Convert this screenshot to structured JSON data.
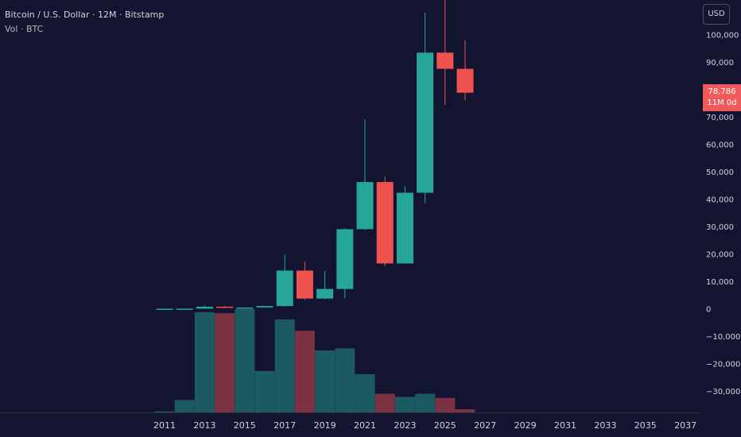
{
  "legend": {
    "title": "Bitcoin / U.S. Dollar · 12M · Bitstamp",
    "volume_label": "Vol · BTC"
  },
  "currency_button": "USD",
  "price_badge": {
    "price": "78,786",
    "countdown": "11M 0d"
  },
  "colors": {
    "background": "#131430",
    "up": "#26a69a",
    "down": "#ef5350",
    "vol_up": "#1c5a62",
    "vol_down": "#7d3244",
    "axis_text": "#d1d4dc"
  },
  "chart_data": {
    "type": "candlestick",
    "y_ticks": [
      "100,000",
      "90,000",
      "80,000",
      "70,000",
      "60,000",
      "50,000",
      "40,000",
      "30,000",
      "20,000",
      "10,000",
      "0",
      "−10,000",
      "−20,000",
      "−30,000"
    ],
    "y_tick_values": [
      100000,
      90000,
      80000,
      70000,
      60000,
      50000,
      40000,
      30000,
      20000,
      10000,
      0,
      -10000,
      -20000,
      -30000
    ],
    "x_ticks": [
      "2011",
      "2013",
      "2015",
      "2017",
      "2019",
      "2021",
      "2023",
      "2025",
      "2027",
      "2029",
      "2031",
      "2033",
      "2035",
      "2037"
    ],
    "x_tick_values": [
      2011,
      2013,
      2015,
      2017,
      2019,
      2021,
      2023,
      2025,
      2027,
      2029,
      2031,
      2033,
      2035,
      2037
    ],
    "ylim": [
      -37000,
      110000
    ],
    "candles": [
      {
        "year": 2011,
        "open": 0.3,
        "high": 32,
        "low": 0.3,
        "close": 5
      },
      {
        "year": 2012,
        "open": 5,
        "high": 16,
        "low": 4,
        "close": 13
      },
      {
        "year": 2013,
        "open": 13,
        "high": 1163,
        "low": 13,
        "close": 730
      },
      {
        "year": 2014,
        "open": 730,
        "high": 1000,
        "low": 200,
        "close": 320
      },
      {
        "year": 2015,
        "open": 320,
        "high": 500,
        "low": 150,
        "close": 430
      },
      {
        "year": 2016,
        "open": 430,
        "high": 980,
        "low": 350,
        "close": 960
      },
      {
        "year": 2017,
        "open": 960,
        "high": 19700,
        "low": 750,
        "close": 13900
      },
      {
        "year": 2018,
        "open": 13900,
        "high": 17200,
        "low": 3200,
        "close": 3700
      },
      {
        "year": 2019,
        "open": 3700,
        "high": 13800,
        "low": 3400,
        "close": 7200
      },
      {
        "year": 2020,
        "open": 7200,
        "high": 29300,
        "low": 3800,
        "close": 29000
      },
      {
        "year": 2021,
        "open": 29000,
        "high": 69000,
        "low": 28800,
        "close": 46200
      },
      {
        "year": 2022,
        "open": 46200,
        "high": 48200,
        "low": 15500,
        "close": 16500
      },
      {
        "year": 2023,
        "open": 16500,
        "high": 44700,
        "low": 16500,
        "close": 42300
      },
      {
        "year": 2024,
        "open": 42300,
        "high": 108000,
        "low": 38500,
        "close": 93400
      },
      {
        "year": 2025,
        "open": 93400,
        "high": 126000,
        "low": 74400,
        "close": 87500
      },
      {
        "year": 2026,
        "open": 87500,
        "high": 97900,
        "low": 76000,
        "close": 78786
      }
    ],
    "volume": [
      {
        "year": 2011,
        "direction": "up",
        "relative": 0.01
      },
      {
        "year": 2012,
        "direction": "up",
        "relative": 0.12
      },
      {
        "year": 2013,
        "direction": "up",
        "relative": 0.97
      },
      {
        "year": 2014,
        "direction": "down",
        "relative": 0.96
      },
      {
        "year": 2015,
        "direction": "up",
        "relative": 1.0
      },
      {
        "year": 2016,
        "direction": "up",
        "relative": 0.4
      },
      {
        "year": 2017,
        "direction": "up",
        "relative": 0.9
      },
      {
        "year": 2018,
        "direction": "down",
        "relative": 0.79
      },
      {
        "year": 2019,
        "direction": "up",
        "relative": 0.6
      },
      {
        "year": 2020,
        "direction": "up",
        "relative": 0.62
      },
      {
        "year": 2021,
        "direction": "up",
        "relative": 0.37
      },
      {
        "year": 2022,
        "direction": "down",
        "relative": 0.18
      },
      {
        "year": 2023,
        "direction": "up",
        "relative": 0.15
      },
      {
        "year": 2024,
        "direction": "up",
        "relative": 0.18
      },
      {
        "year": 2025,
        "direction": "down",
        "relative": 0.14
      },
      {
        "year": 2026,
        "direction": "down",
        "relative": 0.03
      }
    ]
  }
}
